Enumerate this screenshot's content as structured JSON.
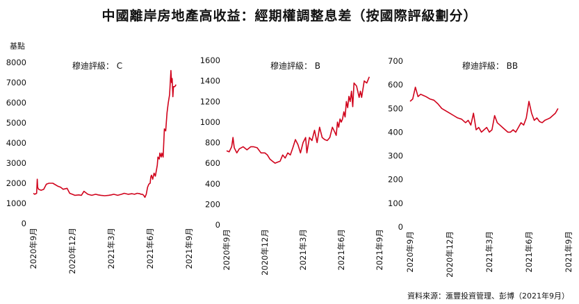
{
  "title": "中國離岸房地產高收益：經期權調整息差（按國際評級劃分）",
  "source": "資料來源：滙豐投資管理、彭博（2021年9月）",
  "y_unit": "基點",
  "colors": {
    "line": "#d0021b",
    "text": "#111111"
  },
  "chart_data": [
    {
      "type": "line",
      "title": "穆迪評級： C",
      "ylabel": "基點",
      "ylim": [
        0,
        8000
      ],
      "yticks": [
        "0",
        "1000",
        "2000",
        "3000",
        "4000",
        "5000",
        "6000",
        "7000",
        "8000"
      ],
      "xlim": [
        0,
        12
      ],
      "xticks": [
        "2020年9月",
        "2020年12月",
        "2021年3月",
        "2021年6月",
        "2021年9月"
      ],
      "series": [
        {
          "name": "C",
          "x": [
            0,
            0.1,
            0.25,
            0.3,
            0.33,
            0.4,
            0.6,
            0.8,
            1.0,
            1.2,
            1.5,
            1.9,
            2.1,
            2.3,
            2.6,
            2.8,
            3.0,
            3.2,
            3.5,
            3.7,
            3.9,
            4.2,
            4.5,
            4.8,
            5.0,
            5.2,
            5.5,
            5.8,
            6.0,
            6.2,
            6.5,
            6.8,
            7.0,
            7.3,
            7.6,
            7.8,
            8.0,
            8.2,
            8.3,
            8.4,
            8.5,
            8.55,
            8.6,
            8.7,
            8.8,
            8.9,
            9.0,
            9.05,
            9.1,
            9.2,
            9.3,
            9.4,
            9.5,
            9.55,
            9.6,
            9.7,
            9.75,
            9.8,
            9.85,
            9.9,
            10.0,
            10.1,
            10.2,
            10.3,
            10.4,
            10.5,
            10.6,
            10.65,
            10.7,
            10.75,
            10.8,
            10.9,
            11.0
          ],
          "y": [
            1500,
            1450,
            1500,
            2200,
            1800,
            1700,
            1650,
            1700,
            1950,
            2000,
            2000,
            1850,
            1800,
            1700,
            1750,
            1500,
            1450,
            1400,
            1420,
            1400,
            1600,
            1450,
            1400,
            1450,
            1420,
            1400,
            1380,
            1400,
            1420,
            1450,
            1400,
            1450,
            1500,
            1450,
            1480,
            1450,
            1500,
            1480,
            1450,
            1450,
            1400,
            1350,
            1300,
            1450,
            1800,
            1950,
            2000,
            2300,
            2400,
            2200,
            2500,
            2350,
            2700,
            2900,
            3300,
            3200,
            3500,
            3400,
            3300,
            3500,
            3300,
            4700,
            4600,
            5500,
            6000,
            6400,
            7600,
            7000,
            7200,
            6300,
            6800,
            6800,
            6900
          ]
        }
      ]
    },
    {
      "type": "line",
      "title": "穆迪評級： B",
      "ylabel": "基點",
      "ylim": [
        0,
        1600
      ],
      "yticks": [
        "0",
        "200",
        "400",
        "600",
        "800",
        "1000",
        "1200",
        "1400",
        "1600"
      ],
      "xlim": [
        0,
        12
      ],
      "xticks": [
        "2020年9月",
        "2020年12月",
        "2021年3月",
        "2021年6月",
        "2021年9月"
      ],
      "series": [
        {
          "name": "B",
          "x": [
            0,
            0.2,
            0.4,
            0.5,
            0.6,
            0.8,
            1.0,
            1.3,
            1.6,
            1.9,
            2.1,
            2.4,
            2.7,
            3.0,
            3.2,
            3.4,
            3.6,
            3.8,
            4.0,
            4.2,
            4.4,
            4.6,
            4.8,
            5.0,
            5.2,
            5.4,
            5.6,
            5.8,
            6.0,
            6.2,
            6.3,
            6.5,
            6.7,
            6.9,
            7.1,
            7.3,
            7.5,
            7.7,
            7.9,
            8.1,
            8.3,
            8.5,
            8.6,
            8.7,
            8.8,
            8.9,
            9.0,
            9.1,
            9.2,
            9.3,
            9.4,
            9.5,
            9.6,
            9.7,
            9.8,
            9.9,
            10.0,
            10.2,
            10.4,
            10.5,
            10.6,
            10.8,
            11.0,
            11.2
          ],
          "y": [
            720,
            710,
            760,
            850,
            750,
            700,
            740,
            760,
            730,
            760,
            760,
            750,
            700,
            700,
            680,
            640,
            620,
            600,
            610,
            620,
            680,
            650,
            700,
            680,
            750,
            830,
            780,
            700,
            800,
            850,
            700,
            850,
            820,
            920,
            800,
            950,
            850,
            830,
            820,
            850,
            950,
            900,
            870,
            1000,
            950,
            1030,
            1000,
            1030,
            1100,
            1050,
            1200,
            1140,
            1250,
            1200,
            1300,
            1150,
            1380,
            1350,
            1240,
            1300,
            1240,
            1400,
            1380,
            1440
          ]
        }
      ]
    },
    {
      "type": "line",
      "title": "穆迪評級： BB",
      "ylabel": "基點",
      "ylim": [
        0,
        700
      ],
      "yticks": [
        "0",
        "100",
        "200",
        "300",
        "400",
        "500",
        "600",
        "700"
      ],
      "xlim": [
        0,
        12
      ],
      "xticks": [
        "2020年9月",
        "2020年12月",
        "2021年3月",
        "2021年6月",
        "2021年9月"
      ],
      "series": [
        {
          "name": "BB",
          "x": [
            0,
            0.2,
            0.4,
            0.6,
            0.8,
            1.0,
            1.2,
            1.5,
            1.8,
            2.1,
            2.4,
            2.7,
            3.0,
            3.3,
            3.6,
            3.9,
            4.2,
            4.4,
            4.6,
            4.8,
            5.0,
            5.2,
            5.4,
            5.6,
            5.8,
            6.0,
            6.2,
            6.4,
            6.6,
            6.8,
            7.0,
            7.2,
            7.4,
            7.6,
            7.8,
            8.0,
            8.2,
            8.4,
            8.6,
            8.8,
            9.0,
            9.2,
            9.4,
            9.6,
            9.8,
            10.0,
            10.2,
            10.4,
            10.6,
            10.8,
            11.0,
            11.2
          ],
          "y": [
            530,
            540,
            590,
            550,
            560,
            555,
            550,
            540,
            535,
            520,
            500,
            490,
            480,
            470,
            460,
            455,
            440,
            450,
            430,
            480,
            410,
            420,
            400,
            410,
            420,
            400,
            410,
            470,
            440,
            430,
            420,
            410,
            400,
            400,
            410,
            400,
            420,
            440,
            430,
            460,
            530,
            480,
            450,
            460,
            445,
            440,
            450,
            455,
            460,
            470,
            480,
            500
          ]
        }
      ]
    }
  ]
}
